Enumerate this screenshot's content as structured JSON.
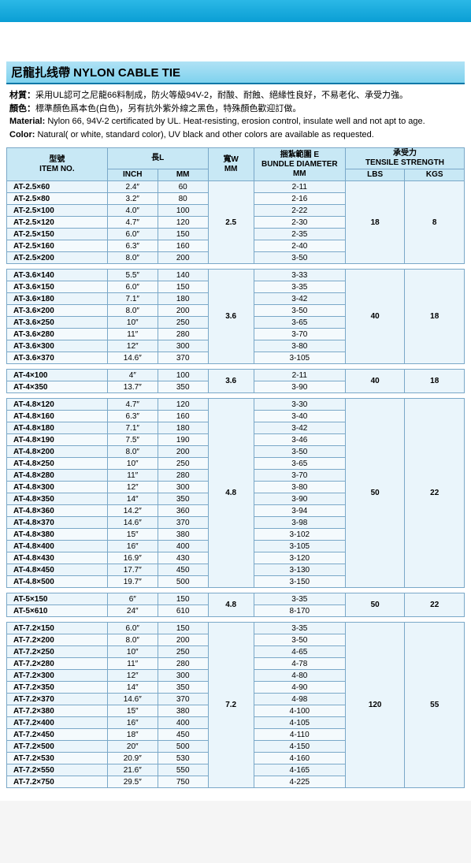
{
  "title_bar": "尼龍扎线帶 NYLON CABLE TIE",
  "desc": {
    "l1_label": "材質：",
    "l1_text": "采用UL認可之尼龍66料制成，防火等級94V-2，耐酸、耐蝕、絕緣性良好，不易老化、承受力強。",
    "l2_label": "顏色：",
    "l2_text": "標準顏色爲本色(白色)，另有抗外紫外線之黑色，特殊顏色歡迎訂做。",
    "l3_label": "Material:",
    "l3_text": "Nylon 66, 94V-2 certificated by UL. Heat-resisting, erosion control, insulate well and not apt to age.",
    "l4_label": "Color:",
    "l4_text": "Natural( or white, standard color), UV black and other colors are available as requested."
  },
  "headers": {
    "item_cn": "型號",
    "item_en": "ITEM NO.",
    "length_cn": "長L",
    "inch": "INCH",
    "mm": "MM",
    "width_cn": "寬W",
    "width_unit": "MM",
    "bundle_cn": "捆紮範圍 E",
    "bundle_en": "BUNDLE DIAMETER",
    "bundle_unit": "MM",
    "strength_cn": "承受力",
    "strength_en": "TENSILE STRENGTH",
    "lbs": "LBS",
    "kgs": "KGS"
  },
  "groups": [
    {
      "width": "2.5",
      "lbs": "18",
      "kgs": "8",
      "rows": [
        {
          "item": "AT-2.5×60",
          "inch": "2.4″",
          "mm": "60",
          "bundle": "2-11"
        },
        {
          "item": "AT-2.5×80",
          "inch": "3.2″",
          "mm": "80",
          "bundle": "2-16"
        },
        {
          "item": "AT-2.5×100",
          "inch": "4.0″",
          "mm": "100",
          "bundle": "2-22"
        },
        {
          "item": "AT-2.5×120",
          "inch": "4.7″",
          "mm": "120",
          "bundle": "2-30"
        },
        {
          "item": "AT-2.5×150",
          "inch": "6.0″",
          "mm": "150",
          "bundle": "2-35"
        },
        {
          "item": "AT-2.5×160",
          "inch": "6.3″",
          "mm": "160",
          "bundle": "2-40"
        },
        {
          "item": "AT-2.5×200",
          "inch": "8.0″",
          "mm": "200",
          "bundle": "3-50"
        }
      ]
    },
    {
      "width": "3.6",
      "lbs": "40",
      "kgs": "18",
      "rows": [
        {
          "item": "AT-3.6×140",
          "inch": "5.5″",
          "mm": "140",
          "bundle": "3-33"
        },
        {
          "item": "AT-3.6×150",
          "inch": "6.0″",
          "mm": "150",
          "bundle": "3-35"
        },
        {
          "item": "AT-3.6×180",
          "inch": "7.1″",
          "mm": "180",
          "bundle": "3-42"
        },
        {
          "item": "AT-3.6×200",
          "inch": "8.0″",
          "mm": "200",
          "bundle": "3-50"
        },
        {
          "item": "AT-3.6×250",
          "inch": "10″",
          "mm": "250",
          "bundle": "3-65"
        },
        {
          "item": "AT-3.6×280",
          "inch": "11″",
          "mm": "280",
          "bundle": "3-70"
        },
        {
          "item": "AT-3.6×300",
          "inch": "12″",
          "mm": "300",
          "bundle": "3-80"
        },
        {
          "item": "AT-3.6×370",
          "inch": "14.6″",
          "mm": "370",
          "bundle": "3-105"
        }
      ]
    },
    {
      "width": "3.6",
      "lbs": "40",
      "kgs": "18",
      "rows": [
        {
          "item": "AT-4×100",
          "inch": "4″",
          "mm": "100",
          "bundle": "2-11"
        },
        {
          "item": "AT-4×350",
          "inch": "13.7″",
          "mm": "350",
          "bundle": "3-90"
        }
      ]
    },
    {
      "width": "4.8",
      "lbs": "50",
      "kgs": "22",
      "rows": [
        {
          "item": "AT-4.8×120",
          "inch": "4.7″",
          "mm": "120",
          "bundle": "3-30"
        },
        {
          "item": "AT-4.8×160",
          "inch": "6.3″",
          "mm": "160",
          "bundle": "3-40"
        },
        {
          "item": "AT-4.8×180",
          "inch": "7.1″",
          "mm": "180",
          "bundle": "3-42"
        },
        {
          "item": "AT-4.8×190",
          "inch": "7.5″",
          "mm": "190",
          "bundle": "3-46"
        },
        {
          "item": "AT-4.8×200",
          "inch": "8.0″",
          "mm": "200",
          "bundle": "3-50"
        },
        {
          "item": "AT-4.8×250",
          "inch": "10″",
          "mm": "250",
          "bundle": "3-65"
        },
        {
          "item": "AT-4.8×280",
          "inch": "11″",
          "mm": "280",
          "bundle": "3-70"
        },
        {
          "item": "AT-4.8×300",
          "inch": "12″",
          "mm": "300",
          "bundle": "3-80"
        },
        {
          "item": "AT-4.8×350",
          "inch": "14″",
          "mm": "350",
          "bundle": "3-90"
        },
        {
          "item": "AT-4.8×360",
          "inch": "14.2″",
          "mm": "360",
          "bundle": "3-94"
        },
        {
          "item": "AT-4.8×370",
          "inch": "14.6″",
          "mm": "370",
          "bundle": "3-98"
        },
        {
          "item": "AT-4.8×380",
          "inch": "15″",
          "mm": "380",
          "bundle": "3-102"
        },
        {
          "item": "AT-4.8×400",
          "inch": "16″",
          "mm": "400",
          "bundle": "3-105"
        },
        {
          "item": "AT-4.8×430",
          "inch": "16.9″",
          "mm": "430",
          "bundle": "3-120"
        },
        {
          "item": "AT-4.8×450",
          "inch": "17.7″",
          "mm": "450",
          "bundle": "3-130"
        },
        {
          "item": "AT-4.8×500",
          "inch": "19.7″",
          "mm": "500",
          "bundle": "3-150"
        }
      ]
    },
    {
      "width": "4.8",
      "lbs": "50",
      "kgs": "22",
      "rows": [
        {
          "item": "AT-5×150",
          "inch": "6″",
          "mm": "150",
          "bundle": "3-35"
        },
        {
          "item": "AT-5×610",
          "inch": "24″",
          "mm": "610",
          "bundle": "8-170"
        }
      ]
    },
    {
      "width": "7.2",
      "lbs": "120",
      "kgs": "55",
      "rows": [
        {
          "item": "AT-7.2×150",
          "inch": "6.0″",
          "mm": "150",
          "bundle": "3-35"
        },
        {
          "item": "AT-7.2×200",
          "inch": "8.0″",
          "mm": "200",
          "bundle": "3-50"
        },
        {
          "item": "AT-7.2×250",
          "inch": "10″",
          "mm": "250",
          "bundle": "4-65"
        },
        {
          "item": "AT-7.2×280",
          "inch": "11″",
          "mm": "280",
          "bundle": "4-78"
        },
        {
          "item": "AT-7.2×300",
          "inch": "12″",
          "mm": "300",
          "bundle": "4-80"
        },
        {
          "item": "AT-7.2×350",
          "inch": "14″",
          "mm": "350",
          "bundle": "4-90"
        },
        {
          "item": "AT-7.2×370",
          "inch": "14.6″",
          "mm": "370",
          "bundle": "4-98"
        },
        {
          "item": "AT-7.2×380",
          "inch": "15″",
          "mm": "380",
          "bundle": "4-100"
        },
        {
          "item": "AT-7.2×400",
          "inch": "16″",
          "mm": "400",
          "bundle": "4-105"
        },
        {
          "item": "AT-7.2×450",
          "inch": "18″",
          "mm": "450",
          "bundle": "4-110"
        },
        {
          "item": "AT-7.2×500",
          "inch": "20″",
          "mm": "500",
          "bundle": "4-150"
        },
        {
          "item": "AT-7.2×530",
          "inch": "20.9″",
          "mm": "530",
          "bundle": "4-160"
        },
        {
          "item": "AT-7.2×550",
          "inch": "21.6″",
          "mm": "550",
          "bundle": "4-165"
        },
        {
          "item": "AT-7.2×750",
          "inch": "29.5″",
          "mm": "750",
          "bundle": "4-225"
        }
      ]
    }
  ],
  "colors": {
    "top_bar": "#1aaad8",
    "title_bg": "#9adcf0",
    "header_bg": "#c8e8f5",
    "row_bg": "#eaf5fb",
    "border": "#7aa8c8"
  }
}
